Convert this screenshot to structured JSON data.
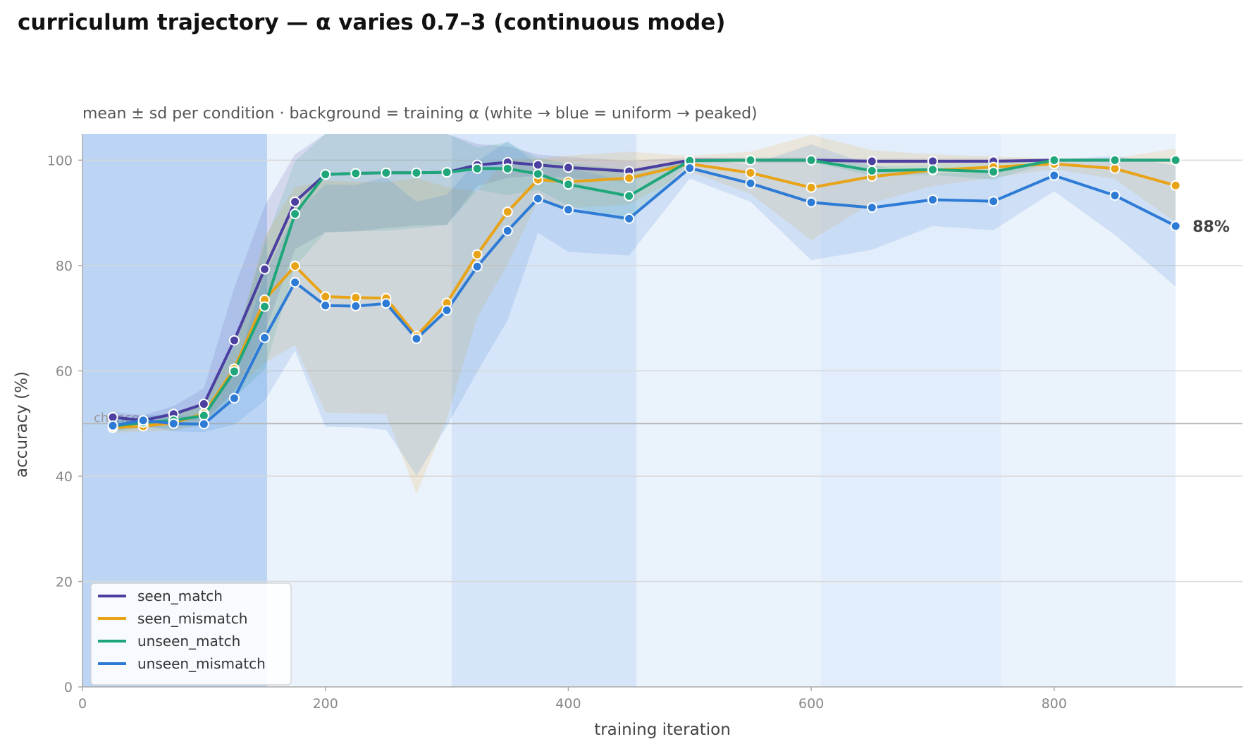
{
  "chart_data": {
    "type": "line",
    "title": "curriculum trajectory — α varies 0.7–3 (continuous mode)",
    "subtitle": "mean ± sd per condition · background = training α (white → blue = uniform → peaked)",
    "xlabel": "training iteration",
    "ylabel": "accuracy (%)",
    "xlim": [
      0,
      955
    ],
    "ylim": [
      0,
      105
    ],
    "xticks": [
      0,
      200,
      400,
      600,
      800
    ],
    "yticks": [
      0,
      20,
      40,
      60,
      80,
      100
    ],
    "grid": "horizontal",
    "legend_position": "bottom-left",
    "chance": {
      "value": 50,
      "label": "chance"
    },
    "end_annotation": {
      "series": "unseen_mismatch",
      "x": 900,
      "y": 87.5,
      "text": "88%"
    },
    "background_bands": [
      {
        "x0": 0,
        "x1": 152,
        "level": 0.55
      },
      {
        "x0": 152,
        "x1": 304,
        "level": 0.1
      },
      {
        "x0": 304,
        "x1": 456,
        "level": 0.3
      },
      {
        "x0": 456,
        "x1": 608,
        "level": 0.1
      },
      {
        "x0": 608,
        "x1": 756,
        "level": 0.18
      },
      {
        "x0": 756,
        "x1": 900,
        "level": 0.1
      }
    ],
    "x": [
      25,
      50,
      75,
      100,
      125,
      150,
      175,
      200,
      225,
      250,
      275,
      300,
      325,
      350,
      375,
      400,
      450,
      500,
      550,
      600,
      650,
      700,
      750,
      800,
      850,
      900
    ],
    "series": [
      {
        "name": "seen_match",
        "color": "#4b3fa0",
        "values": [
          51.2,
          50.6,
          51.8,
          53.7,
          65.8,
          79.3,
          92.1,
          97.3,
          97.5,
          97.6,
          97.6,
          97.7,
          99.1,
          99.6,
          99.1,
          98.6,
          97.9,
          100.0,
          100.0,
          100.0,
          99.8,
          99.8,
          99.8,
          100.0,
          100.0,
          100.0
        ],
        "sd": [
          1.0,
          1.0,
          1.5,
          3.0,
          10.0,
          12.0,
          9.0,
          11.0,
          11.0,
          10.5,
          10.0,
          10.0,
          4.0,
          3.0,
          2.0,
          2.0,
          2.0,
          0.5,
          0.5,
          0.5,
          0.5,
          0.5,
          0.5,
          0.3,
          0.3,
          0.3
        ]
      },
      {
        "name": "seen_mismatch",
        "color": "#e8a317",
        "values": [
          49.2,
          49.5,
          50.1,
          51.9,
          60.4,
          73.5,
          79.9,
          74.1,
          73.9,
          73.8,
          66.6,
          72.9,
          82.1,
          90.2,
          96.3,
          95.9,
          96.6,
          99.3,
          97.6,
          94.8,
          96.9,
          98.1,
          98.7,
          99.3,
          98.4,
          95.2
        ],
        "sd": [
          1.0,
          1.0,
          1.5,
          2.0,
          4.0,
          12.0,
          15.0,
          22.0,
          22.0,
          22.0,
          30.0,
          22.0,
          12.0,
          10.0,
          4.0,
          5.0,
          5.0,
          1.5,
          4.0,
          10.0,
          5.0,
          3.0,
          2.0,
          1.0,
          2.0,
          7.0
        ]
      },
      {
        "name": "unseen_match",
        "color": "#1fa67a",
        "values": [
          49.5,
          50.2,
          50.6,
          51.5,
          59.9,
          72.2,
          89.8,
          97.3,
          97.5,
          97.6,
          97.6,
          97.7,
          98.4,
          98.4,
          97.4,
          95.4,
          93.2,
          99.9,
          100.0,
          100.0,
          98.0,
          98.2,
          97.8,
          100.0,
          100.0,
          100.0
        ],
        "sd": [
          1.0,
          1.0,
          1.5,
          2.0,
          5.0,
          12.0,
          10.0,
          11.0,
          11.0,
          11.0,
          10.5,
          10.0,
          4.0,
          5.0,
          3.0,
          4.0,
          5.0,
          0.3,
          0.3,
          0.3,
          1.0,
          1.0,
          1.5,
          0.3,
          0.3,
          0.3
        ]
      },
      {
        "name": "unseen_mismatch",
        "color": "#2e7bd6",
        "values": [
          49.6,
          50.6,
          50.0,
          49.9,
          54.8,
          66.3,
          76.8,
          72.4,
          72.3,
          72.8,
          66.1,
          71.5,
          79.8,
          86.6,
          92.7,
          90.6,
          88.9,
          98.5,
          95.6,
          92.0,
          91.0,
          92.5,
          92.2,
          97.1,
          93.3,
          87.5
        ],
        "sd": [
          1.0,
          1.0,
          1.5,
          1.5,
          5.0,
          12.0,
          13.0,
          23.0,
          23.0,
          24.0,
          26.0,
          22.0,
          20.0,
          17.0,
          6.5,
          8.0,
          7.0,
          2.0,
          3.5,
          11.0,
          8.0,
          5.0,
          5.5,
          3.0,
          7.5,
          11.5
        ]
      }
    ]
  }
}
